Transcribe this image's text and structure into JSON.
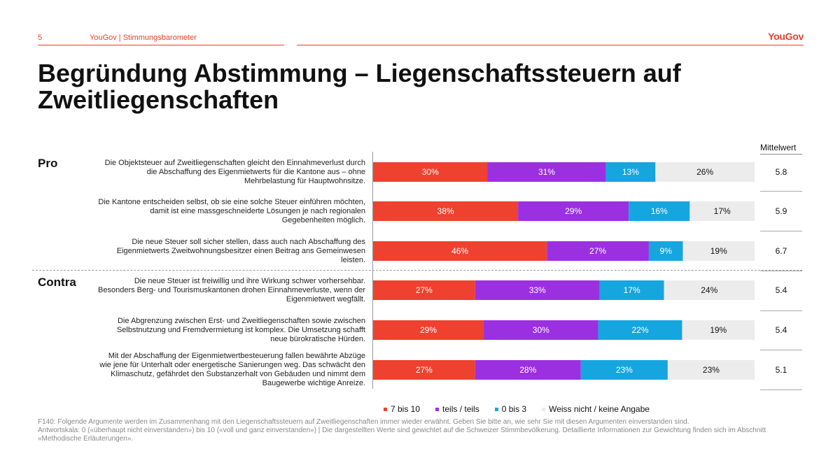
{
  "header": {
    "page_number": "5",
    "source": "YouGov | Stimmungsbarometer",
    "logo": "YouGov"
  },
  "title": "Begründung Abstimmung – Liegenschaftssteuern auf Zweitliegenschaften",
  "groups": {
    "pro": "Pro",
    "contra": "Contra"
  },
  "mittelwert_label": "Mittelwert",
  "colors": {
    "7_10": "#ef4130",
    "teils": "#9b30e0",
    "0_3": "#15a6df",
    "weiss": "#ececec",
    "accent": "#e8412c"
  },
  "chart_data": {
    "type": "bar",
    "stacked": true,
    "orientation": "horizontal",
    "categories": [
      "Die Objektsteuer auf Zweitliegenschaften gleicht den Einnahmeverlust durch die Abschaffung des Eigenmietwerts für die Kantone aus – ohne Mehrbelastung für Hauptwohnsitze.",
      "Die Kantone entscheiden selbst, ob sie eine solche Steuer einführen möchten, damit ist eine massgeschneiderte Lösungen je nach regionalen Gegebenheiten möglich.",
      "Die neue Steuer soll sicher stellen, dass auch nach Abschaffung des Eigenmietwerts Zweitwohnungsbesitzer einen Beitrag ans Gemeinwesen leisten.",
      "Die neue Steuer ist freiwillig und ihre Wirkung schwer vorhersehbar. Besonders Berg- und Tourismuskantonen drohen Einnahmeverluste, wenn der Eigenmietwert wegfällt.",
      "Die Abgrenzung zwischen Erst- und Zweitliegenschaften sowie zwischen Selbstnutzung und Fremdvermietung ist komplex. Die Umsetzung schafft neue bürokratische Hürden.",
      "Mit der Abschaffung der Eigenmietwertbesteuerung fallen bewährte Abzüge wie jene für Unterhalt oder energetische Sanierungen weg. Das schwächt den Klimaschutz, gefährdet den Substanzerhalt von Gebäuden und nimmt dem Baugewerbe wichtige Anreize."
    ],
    "series": [
      {
        "name": "7 bis 10",
        "values": [
          30,
          38,
          46,
          27,
          29,
          27
        ]
      },
      {
        "name": "teils / teils",
        "values": [
          31,
          29,
          27,
          33,
          30,
          28
        ]
      },
      {
        "name": "0 bis 3",
        "values": [
          13,
          16,
          9,
          17,
          22,
          23
        ]
      },
      {
        "name": "Weiss nicht / keine Angabe",
        "values": [
          26,
          17,
          19,
          24,
          19,
          23
        ]
      }
    ],
    "mittelwert": [
      "5.8",
      "5.9",
      "6.7",
      "5.4",
      "5.4",
      "5.1"
    ],
    "xlim": [
      0,
      100
    ],
    "grid": false,
    "legend": "bottom"
  },
  "footnote": {
    "line1": "F140: Folgende Argumente werden im Zusammenhang mit den Liegenschaftssteuern auf Zweitliegenschaften immer wieder erwähnt. Geben Sie bitte an, wie sehr Sie mit diesen Argumenten einverstanden sind.",
    "line2": "Antwortskala: 0 («überhaupt nicht einverstanden») bis 10 («voll und ganz einverstanden») | Die dargestellten Werte sind gewichtet auf die Schweizer Stimmbevölkerung. Detaillierte Informationen zur Gewichtung finden sich im Abschnitt «Methodische Erläuterungen»."
  }
}
